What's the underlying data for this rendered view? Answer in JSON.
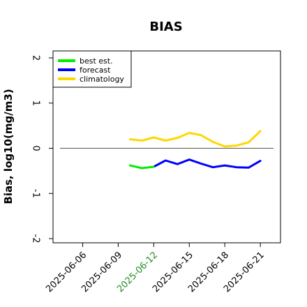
{
  "chart_data": {
    "type": "line",
    "title": "BIAS",
    "xlabel": "",
    "ylabel": "Bias, log10(mg/m3)",
    "ylim": [
      -2,
      2
    ],
    "yticks": [
      "-2",
      "-1",
      "0",
      "1",
      "2"
    ],
    "x_start": "2025-06-04",
    "x_end": "2025-06-21",
    "x_range_extra_days": [
      -0.5,
      1.7
    ],
    "xticks": [
      {
        "date": "2025-06-06",
        "label": "2025-06-06",
        "color": "#000000"
      },
      {
        "date": "2025-06-09",
        "label": "2025-06-09",
        "color": "#000000"
      },
      {
        "date": "2025-06-12",
        "label": "2025-06-12",
        "color": "#228b22"
      },
      {
        "date": "2025-06-15",
        "label": "2025-06-15",
        "color": "#000000"
      },
      {
        "date": "2025-06-18",
        "label": "2025-06-18",
        "color": "#000000"
      },
      {
        "date": "2025-06-21",
        "label": "2025-06-21",
        "color": "#000000"
      }
    ],
    "reference_line_y": 0,
    "legend_position": "top-left",
    "series": [
      {
        "name": "best est.",
        "color": "#00ee00",
        "x": [
          "2025-06-10",
          "2025-06-11",
          "2025-06-12"
        ],
        "values": [
          -0.38,
          -0.44,
          -0.41
        ]
      },
      {
        "name": "forecast",
        "color": "#0000ff",
        "x": [
          "2025-06-12",
          "2025-06-13",
          "2025-06-14",
          "2025-06-15",
          "2025-06-16",
          "2025-06-17",
          "2025-06-18",
          "2025-06-19",
          "2025-06-20",
          "2025-06-21"
        ],
        "values": [
          -0.41,
          -0.27,
          -0.35,
          -0.25,
          -0.34,
          -0.42,
          -0.38,
          -0.42,
          -0.43,
          -0.28
        ]
      },
      {
        "name": "climatology",
        "color": "#ffd700",
        "x": [
          "2025-06-10",
          "2025-06-11",
          "2025-06-12",
          "2025-06-13",
          "2025-06-14",
          "2025-06-15",
          "2025-06-16",
          "2025-06-17",
          "2025-06-18",
          "2025-06-19",
          "2025-06-20",
          "2025-06-21"
        ],
        "values": [
          0.2,
          0.17,
          0.24,
          0.17,
          0.23,
          0.34,
          0.29,
          0.14,
          0.04,
          0.06,
          0.13,
          0.38
        ]
      }
    ]
  }
}
